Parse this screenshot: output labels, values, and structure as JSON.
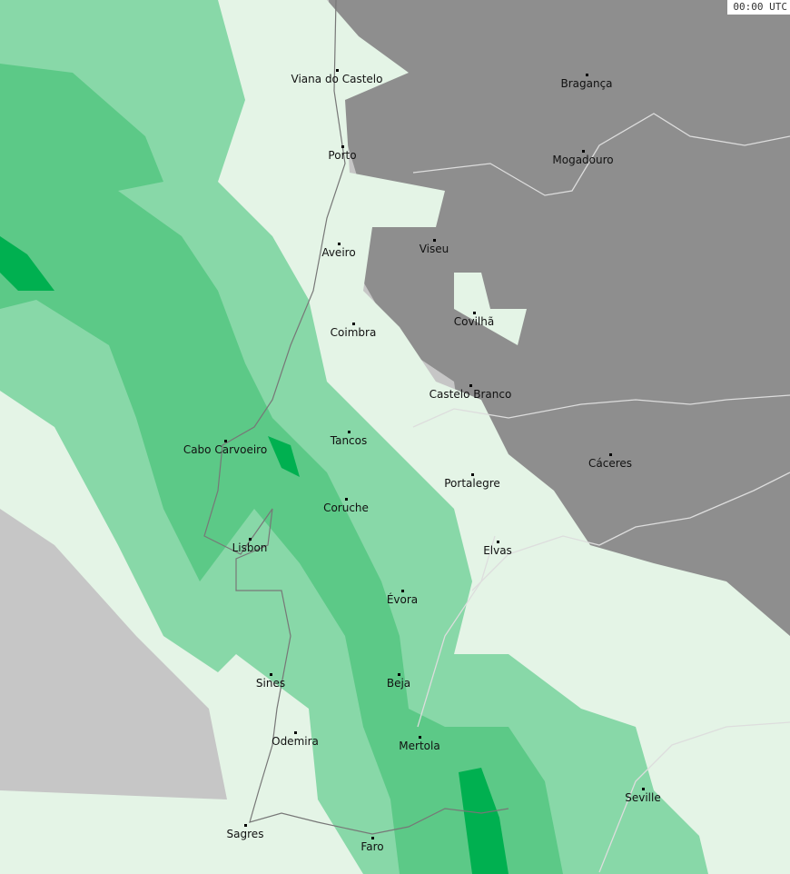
{
  "timestamp": "00:00 UTC",
  "colors": {
    "sea": "#c6c6c6",
    "spain": "#8e8e8e",
    "light": "#e4f4e6",
    "green1": "#88d8a8",
    "green2": "#5cc987",
    "green3": "#00b050"
  },
  "cities": [
    {
      "name": "Viana do Castelo"
    },
    {
      "name": "Bragança"
    },
    {
      "name": "Porto"
    },
    {
      "name": "Mogadouro"
    },
    {
      "name": "Aveiro"
    },
    {
      "name": "Viseu"
    },
    {
      "name": "Covilhã"
    },
    {
      "name": "Coimbra"
    },
    {
      "name": "Castelo Branco"
    },
    {
      "name": "Tancos"
    },
    {
      "name": "Cáceres"
    },
    {
      "name": "Cabo Carvoeiro"
    },
    {
      "name": "Portalegre"
    },
    {
      "name": "Coruche"
    },
    {
      "name": "Elvas"
    },
    {
      "name": "Lisbon"
    },
    {
      "name": "Évora"
    },
    {
      "name": "Sines"
    },
    {
      "name": "Beja"
    },
    {
      "name": "Odemira"
    },
    {
      "name": "Mertola"
    },
    {
      "name": "Seville"
    },
    {
      "name": "Sagres"
    },
    {
      "name": "Faro"
    }
  ]
}
